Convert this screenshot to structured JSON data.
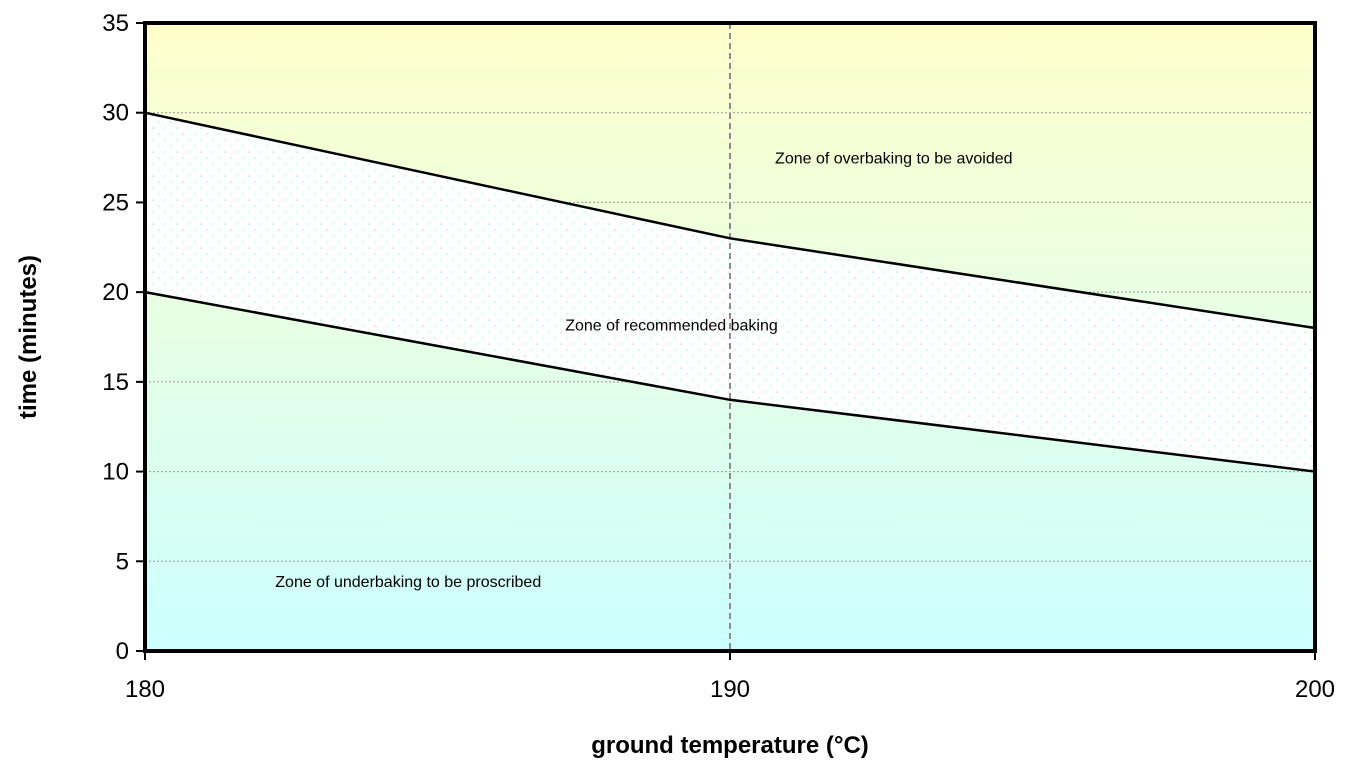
{
  "chart_data": {
    "type": "area",
    "title": "",
    "xlabel": "ground temperature (°C)",
    "ylabel": "time (minutes)",
    "xlim": [
      180,
      200
    ],
    "ylim": [
      0,
      35
    ],
    "x_ticks": [
      180,
      190,
      200
    ],
    "y_ticks": [
      0,
      5,
      10,
      15,
      20,
      25,
      30,
      35
    ],
    "horizontal_grid": true,
    "vertical_reference_line": 190,
    "lower_bound": {
      "x": [
        180,
        190,
        200
      ],
      "y": [
        20,
        14,
        10
      ]
    },
    "upper_bound": {
      "x": [
        180,
        190,
        200
      ],
      "y": [
        30,
        23,
        18
      ]
    },
    "zones": [
      {
        "label": "Zone of overbaking to be avoided",
        "x": 192.8,
        "y": 27.5
      },
      {
        "label": "Zone of recommended baking",
        "x": 189.0,
        "y": 18.2
      },
      {
        "label": "Zone of underbaking to be proscribed",
        "x": 184.5,
        "y": 3.9
      }
    ],
    "colors": {
      "gradient_top": "#ffffcc",
      "gradient_bottom": "#ccffff",
      "recommended_fill": "#ffffff",
      "pattern_dot": "#ccf5f5",
      "boundary_line": "#000000",
      "grid_line": "#999999",
      "reference_line": "#8c8c8c"
    }
  }
}
